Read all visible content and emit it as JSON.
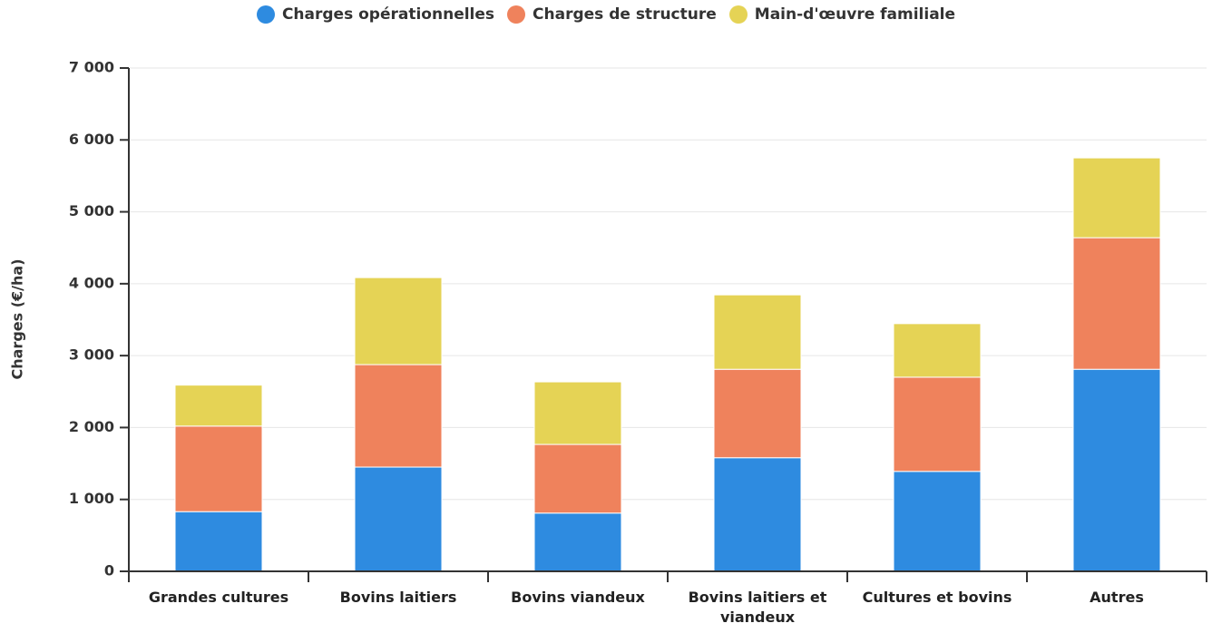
{
  "chart_data": {
    "type": "stacked_bar",
    "y_label": "Charges (€/ha)",
    "categories": [
      "Grandes cultures",
      "Bovins laitiers",
      "Bovins viandeux",
      "Bovins laitiers et viandeux",
      "Cultures et bovins",
      "Autres"
    ],
    "series": [
      {
        "name": "Charges opérationnelles",
        "color": "#2e8be0",
        "values": [
          830,
          1450,
          810,
          1580,
          1390,
          2810
        ]
      },
      {
        "name": "Charges de structure",
        "color": "#ef825c",
        "values": [
          1190,
          1425,
          955,
          1230,
          1310,
          1830
        ]
      },
      {
        "name": "Main-d'œuvre familiale",
        "color": "#e5d355",
        "values": [
          570,
          1210,
          870,
          1035,
          745,
          1110
        ]
      }
    ],
    "ylim": [
      0,
      7000
    ],
    "yticks": [
      0,
      {
        "value": 1000,
        "label": "1 000"
      },
      {
        "value": 2000,
        "label": "2 000"
      },
      {
        "value": 3000,
        "label": "3 000"
      },
      {
        "value": 4000,
        "label": "4 000"
      },
      {
        "value": 5000,
        "label": "5 000"
      },
      {
        "value": 6000,
        "label": "6 000"
      },
      {
        "value": 7000,
        "label": "7 000"
      }
    ],
    "grid": true,
    "legend": "top"
  }
}
